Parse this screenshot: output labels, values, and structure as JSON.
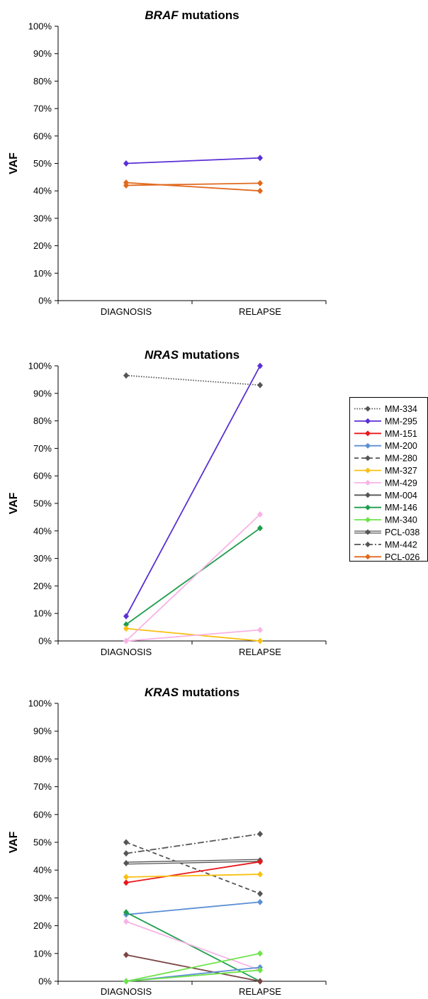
{
  "series_styles": {
    "MM-334": {
      "color": "#555555",
      "dash": "dotted"
    },
    "MM-295": {
      "color": "#5a2fd6",
      "dash": "solid"
    },
    "MM-151": {
      "color": "#e8161b",
      "dash": "solid"
    },
    "MM-200": {
      "color": "#5b8fd6",
      "dash": "solid"
    },
    "MM-280": {
      "color": "#555555",
      "dash": "dashed"
    },
    "MM-327": {
      "color": "#f8c013",
      "dash": "solid"
    },
    "MM-429": {
      "color": "#f7b3e6",
      "dash": "solid"
    },
    "MM-004": {
      "color": "#555555",
      "dash": "solid"
    },
    "MM-146": {
      "color": "#1e9d4c",
      "dash": "solid"
    },
    "MM-340": {
      "color": "#6ee34a",
      "dash": "solid"
    },
    "PCL-038": {
      "color": "#555555",
      "dash": "double"
    },
    "MM-442": {
      "color": "#555555",
      "dash": "dashdot"
    },
    "PCL-026": {
      "color": "#e0691f",
      "dash": "solid"
    },
    "MM-004-kras": {
      "color": "#7a4545",
      "dash": "solid"
    }
  },
  "legend": [
    "MM-334",
    "MM-295",
    "MM-151",
    "MM-200",
    "MM-280",
    "MM-327",
    "MM-429",
    "MM-004",
    "MM-146",
    "MM-340",
    "PCL-038",
    "MM-442",
    "PCL-026"
  ],
  "chart_data": [
    {
      "type": "line",
      "title_gene": "BRAF",
      "title_rest": " mutations",
      "ylabel": "VAF",
      "categories": [
        "DIAGNOSIS",
        "RELAPSE"
      ],
      "ylim": [
        0,
        100
      ],
      "yticks": [
        "0%",
        "10%",
        "20%",
        "30%",
        "40%",
        "50%",
        "60%",
        "70%",
        "80%",
        "90%",
        "100%"
      ],
      "series": [
        {
          "name": "MM-295",
          "values": [
            50,
            52
          ]
        },
        {
          "name": "PCL-026",
          "values": [
            43,
            40
          ]
        },
        {
          "name": "PCL-026",
          "values": [
            42,
            42.8
          ]
        }
      ]
    },
    {
      "type": "line",
      "title_gene": "NRAS",
      "title_rest": " mutations",
      "ylabel": "VAF",
      "categories": [
        "DIAGNOSIS",
        "RELAPSE"
      ],
      "ylim": [
        0,
        100
      ],
      "yticks": [
        "0%",
        "10%",
        "20%",
        "30%",
        "40%",
        "50%",
        "60%",
        "70%",
        "80%",
        "90%",
        "100%"
      ],
      "series": [
        {
          "name": "MM-334",
          "values": [
            96.5,
            93
          ]
        },
        {
          "name": "MM-295",
          "values": [
            9,
            100
          ]
        },
        {
          "name": "MM-146",
          "values": [
            6,
            41
          ]
        },
        {
          "name": "MM-327",
          "values": [
            4.5,
            0
          ]
        },
        {
          "name": "MM-429",
          "values": [
            0,
            46
          ]
        },
        {
          "name": "MM-429",
          "values": [
            0,
            4
          ]
        }
      ]
    },
    {
      "type": "line",
      "title_gene": "KRAS",
      "title_rest": " mutations",
      "ylabel": "VAF",
      "categories": [
        "DIAGNOSIS",
        "RELAPSE"
      ],
      "ylim": [
        0,
        100
      ],
      "yticks": [
        "0%",
        "10%",
        "20%",
        "30%",
        "40%",
        "50%",
        "60%",
        "70%",
        "80%",
        "90%",
        "100%"
      ],
      "series": [
        {
          "name": "MM-280",
          "values": [
            50,
            31.5
          ]
        },
        {
          "name": "MM-442",
          "values": [
            46,
            53
          ]
        },
        {
          "name": "PCL-038",
          "values": [
            42.5,
            43.5
          ]
        },
        {
          "name": "MM-151",
          "values": [
            35.5,
            43
          ]
        },
        {
          "name": "MM-327",
          "values": [
            37.5,
            38.5
          ]
        },
        {
          "name": "MM-200",
          "values": [
            24,
            28.5
          ]
        },
        {
          "name": "MM-146",
          "values": [
            24.8,
            0
          ]
        },
        {
          "name": "MM-429",
          "values": [
            21.5,
            4
          ]
        },
        {
          "name": "MM-004-kras",
          "values": [
            9.5,
            0
          ]
        },
        {
          "name": "MM-340",
          "values": [
            0,
            10
          ]
        },
        {
          "name": "MM-200",
          "values": [
            0,
            5
          ]
        },
        {
          "name": "MM-340",
          "values": [
            0,
            4
          ]
        }
      ]
    }
  ]
}
